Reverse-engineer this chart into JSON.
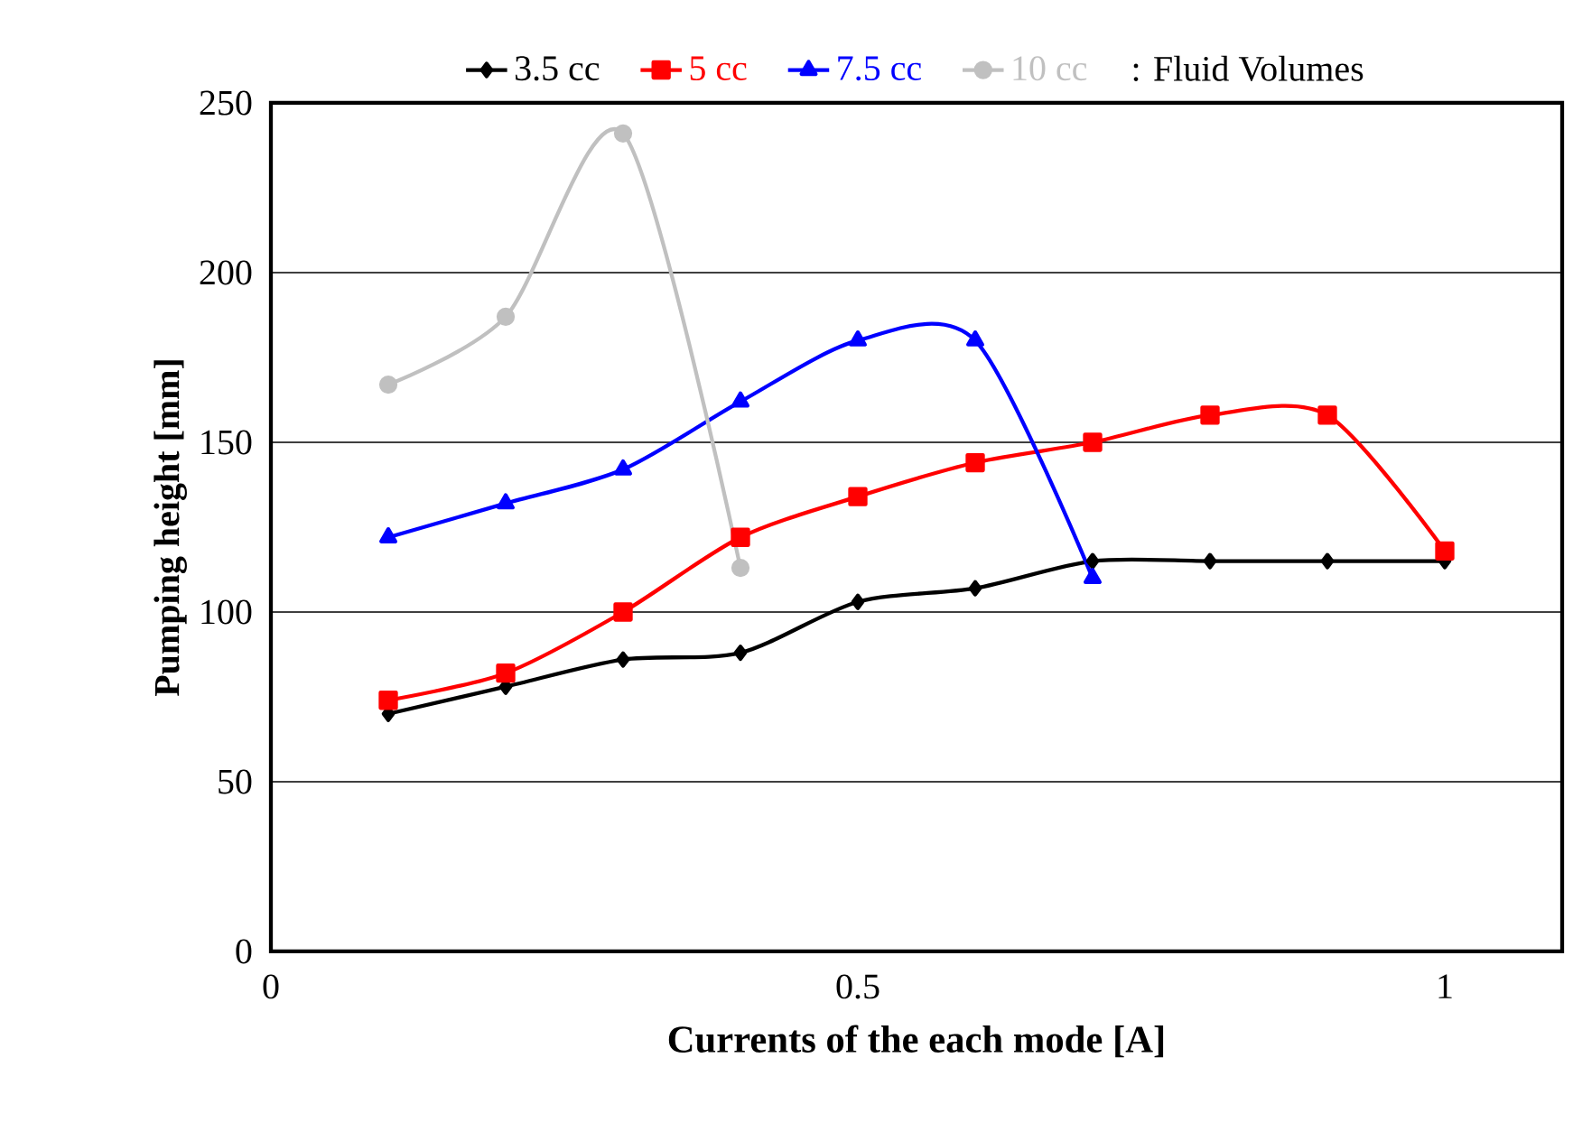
{
  "chart_data": {
    "type": "line",
    "xlabel": "Currents of the each mode [A]",
    "ylabel": "Pumping height [mm]",
    "legend_title": ": Fluid Volumes",
    "series": [
      {
        "name": "3.5 cc",
        "color": "#000000",
        "marker": "diamond",
        "x": [
          0.1,
          0.2,
          0.3,
          0.4,
          0.5,
          0.6,
          0.7,
          0.8,
          0.9,
          1.0
        ],
        "values": [
          70,
          78,
          86,
          88,
          103,
          107,
          115,
          115,
          115,
          115
        ]
      },
      {
        "name": "5 cc",
        "color": "#ff0000",
        "marker": "square",
        "x": [
          0.1,
          0.2,
          0.3,
          0.4,
          0.5,
          0.6,
          0.7,
          0.8,
          0.9,
          1.0
        ],
        "values": [
          74,
          82,
          100,
          122,
          134,
          144,
          150,
          158,
          158,
          118
        ]
      },
      {
        "name": "7.5 cc",
        "color": "#0000ff",
        "marker": "triangle",
        "x": [
          0.1,
          0.2,
          0.3,
          0.4,
          0.5,
          0.6,
          0.7
        ],
        "values": [
          122,
          132,
          142,
          162,
          180,
          180,
          110
        ]
      },
      {
        "name": "10 cc",
        "color": "#c0c0c0",
        "marker": "circle",
        "x": [
          0.1,
          0.2,
          0.3,
          0.4
        ],
        "values": [
          167,
          187,
          241,
          113
        ]
      }
    ],
    "xlim": [
      0,
      1.1
    ],
    "ylim": [
      0,
      250
    ],
    "xticks": [
      0,
      0.5,
      1
    ],
    "yticks": [
      0,
      50,
      100,
      150,
      200,
      250
    ],
    "grid": "y",
    "legend": "top",
    "line_style": "solid"
  }
}
